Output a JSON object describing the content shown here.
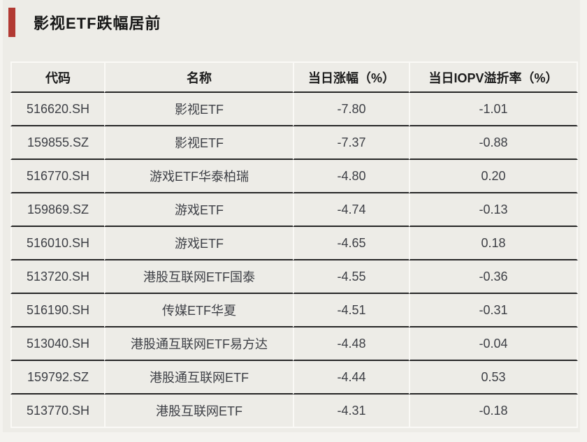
{
  "page": {
    "background": "#edece7",
    "outer_background": "#f4f3ef",
    "accent_color": "#b23a33",
    "rule_dark_color": "#262626",
    "rule_light_color": "#faf9f6"
  },
  "header": {
    "title": "影视ETF跌幅居前"
  },
  "table": {
    "columns": [
      {
        "key": "code",
        "label": "代码"
      },
      {
        "key": "name",
        "label": "名称"
      },
      {
        "key": "change",
        "label": "当日涨幅（%）"
      },
      {
        "key": "iopv",
        "label": "当日IOPV溢折率（%）"
      }
    ],
    "rows": [
      {
        "code": "516620.SH",
        "name": "影视ETF",
        "change": "-7.80",
        "iopv": "-1.01"
      },
      {
        "code": "159855.SZ",
        "name": "影视ETF",
        "change": "-7.37",
        "iopv": "-0.88"
      },
      {
        "code": "516770.SH",
        "name": "游戏ETF华泰柏瑞",
        "change": "-4.80",
        "iopv": "0.20"
      },
      {
        "code": "159869.SZ",
        "name": "游戏ETF",
        "change": "-4.74",
        "iopv": "-0.13"
      },
      {
        "code": "516010.SH",
        "name": "游戏ETF",
        "change": "-4.65",
        "iopv": "0.18"
      },
      {
        "code": "513720.SH",
        "name": "港股互联网ETF国泰",
        "change": "-4.55",
        "iopv": "-0.36"
      },
      {
        "code": "516190.SH",
        "name": "传媒ETF华夏",
        "change": "-4.51",
        "iopv": "-0.31"
      },
      {
        "code": "513040.SH",
        "name": "港股通互联网ETF易方达",
        "change": "-4.48",
        "iopv": "-0.04"
      },
      {
        "code": "159792.SZ",
        "name": "港股通互联网ETF",
        "change": "-4.44",
        "iopv": "0.53"
      },
      {
        "code": "513770.SH",
        "name": "港股互联网ETF",
        "change": "-4.31",
        "iopv": "-0.18"
      }
    ]
  },
  "chart_data": {
    "type": "table",
    "title": "影视ETF跌幅居前",
    "columns": [
      "代码",
      "名称",
      "当日涨幅（%）",
      "当日IOPV溢折率（%）"
    ],
    "rows": [
      [
        "516620.SH",
        "影视ETF",
        -7.8,
        -1.01
      ],
      [
        "159855.SZ",
        "影视ETF",
        -7.37,
        -0.88
      ],
      [
        "516770.SH",
        "游戏ETF华泰柏瑞",
        -4.8,
        0.2
      ],
      [
        "159869.SZ",
        "游戏ETF",
        -4.74,
        -0.13
      ],
      [
        "516010.SH",
        "游戏ETF",
        -4.65,
        0.18
      ],
      [
        "513720.SH",
        "港股互联网ETF国泰",
        -4.55,
        -0.36
      ],
      [
        "516190.SH",
        "传媒ETF华夏",
        -4.51,
        -0.31
      ],
      [
        "513040.SH",
        "港股通互联网ETF易方达",
        -4.48,
        -0.04
      ],
      [
        "159792.SZ",
        "港股通互联网ETF",
        -4.44,
        0.53
      ],
      [
        "513770.SH",
        "港股互联网ETF",
        -4.31,
        -0.18
      ]
    ]
  }
}
